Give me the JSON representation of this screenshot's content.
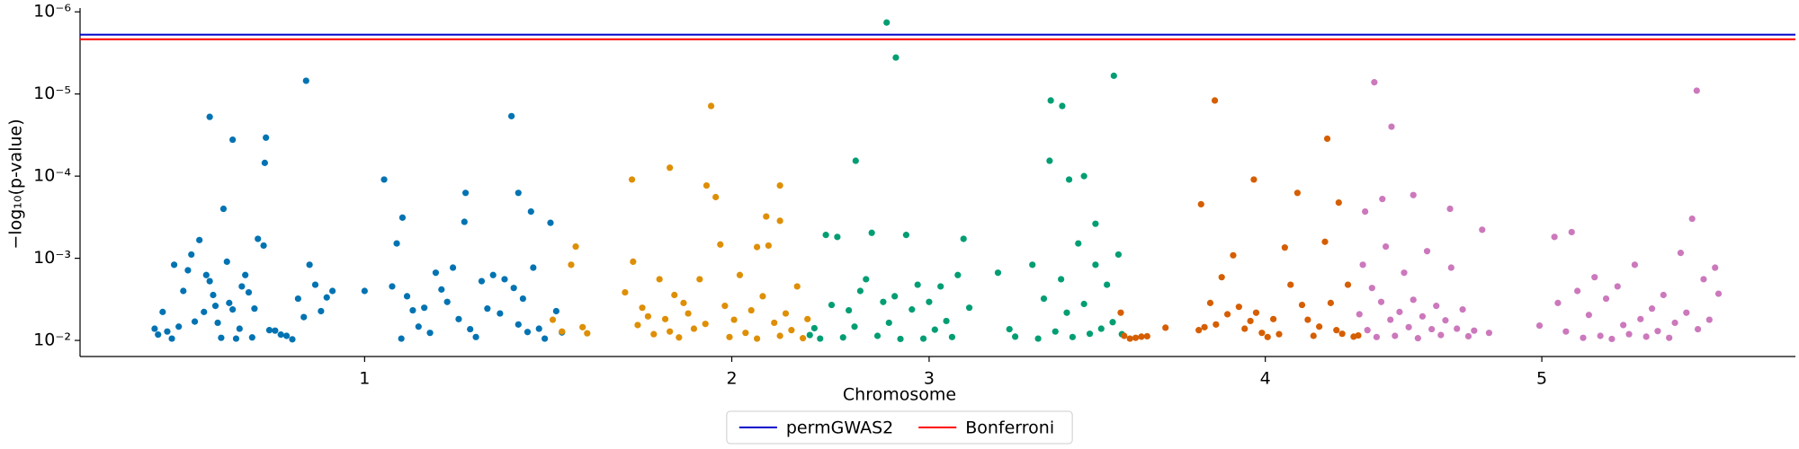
{
  "chart_data": {
    "type": "scatter",
    "x_label": "Chromosome",
    "y_label": "−log₁₀(p-value)",
    "log_y": true,
    "xlim": [
      0,
      1495
    ],
    "ylim": [
      0.0157,
      9e-07
    ],
    "xticks": [
      {
        "value": 248,
        "label": "1"
      },
      {
        "value": 568,
        "label": "2"
      },
      {
        "value": 740,
        "label": "3"
      },
      {
        "value": 1033,
        "label": "4"
      },
      {
        "value": 1274,
        "label": "5"
      }
    ],
    "yticks": [
      {
        "value": 0.01,
        "label": "10⁻²"
      },
      {
        "value": 0.001,
        "label": "10⁻³"
      },
      {
        "value": 0.0001,
        "label": "10⁻⁴"
      },
      {
        "value": 1e-05,
        "label": "10⁻⁵"
      },
      {
        "value": 1e-06,
        "label": "10⁻⁶"
      }
    ],
    "legend": "lower center outside",
    "series": [
      {
        "color": "#0173b2",
        "x": [
          65,
          68,
          72,
          76,
          80,
          82,
          86,
          90,
          94,
          97,
          100,
          104,
          108,
          110,
          113,
          116,
          118,
          120,
          123,
          125,
          128,
          130,
          133,
          136,
          139,
          141,
          144,
          147,
          150,
          152,
          113,
          133,
          162,
          161,
          155,
          160,
          165,
          170,
          175,
          180,
          185,
          190,
          195,
          200,
          205,
          210,
          197,
          215,
          220,
          248,
          265,
          272,
          276,
          280,
          285,
          290,
          295,
          300,
          305,
          310,
          315,
          320,
          325,
          330,
          335,
          340,
          345,
          350,
          355,
          360,
          366,
          370,
          376,
          378,
          382,
          386,
          390,
          395,
          400,
          405,
          410,
          415,
          420,
          336,
          382,
          281,
          393
        ],
        "values": [
          0.0072,
          0.0085,
          0.0045,
          0.0078,
          0.0095,
          0.0012,
          0.0068,
          0.0025,
          0.0014,
          0.0009,
          0.0059,
          0.0006,
          0.0045,
          0.0016,
          0.0019,
          0.0028,
          0.0038,
          0.0061,
          0.0093,
          0.00025,
          0.0011,
          0.0035,
          0.0042,
          0.0095,
          0.0072,
          0.0022,
          0.0016,
          0.0026,
          0.0092,
          0.0041,
          1.9e-05,
          3.6e-05,
          3.4e-05,
          6.9e-05,
          0.00058,
          0.0007,
          0.0075,
          0.0076,
          0.0085,
          0.0088,
          0.0097,
          0.0031,
          0.0052,
          0.0012,
          0.0021,
          0.0044,
          6.9e-06,
          0.003,
          0.0025,
          0.0025,
          0.00011,
          0.0022,
          0.00066,
          0.0095,
          0.0029,
          0.0043,
          0.0068,
          0.004,
          0.0081,
          0.0015,
          0.0024,
          0.0034,
          0.0013,
          0.0055,
          0.00036,
          0.0073,
          0.0091,
          0.0019,
          0.0041,
          0.0016,
          0.0047,
          0.0018,
          1.86e-05,
          0.0023,
          0.0064,
          0.0031,
          0.0079,
          0.0013,
          0.0072,
          0.0095,
          0.00037,
          0.0044,
          0.008,
          0.00016,
          0.00016,
          0.00032,
          0.00027
        ]
      },
      {
        "color": "#de8f05",
        "x": [
          412,
          420,
          428,
          432,
          438,
          442,
          475,
          482,
          486,
          490,
          495,
          500,
          505,
          510,
          514,
          518,
          522,
          526,
          530,
          535,
          540,
          545,
          550,
          481,
          514,
          546,
          610,
          554,
          558,
          562,
          566,
          570,
          575,
          580,
          585,
          590,
          595,
          600,
          605,
          610,
          615,
          620,
          625,
          630,
          634,
          590,
          610,
          598
        ],
        "values": [
          0.0056,
          0.0078,
          0.0012,
          0.00072,
          0.0069,
          0.0082,
          0.0026,
          0.0011,
          0.0065,
          0.004,
          0.0051,
          0.0084,
          0.0018,
          0.0055,
          0.0078,
          0.0028,
          0.0092,
          0.0035,
          0.0047,
          0.0072,
          0.0018,
          0.0063,
          1.4e-05,
          0.00011,
          7.9e-05,
          0.00013,
          0.00013,
          0.00018,
          0.00068,
          0.0038,
          0.0091,
          0.0056,
          0.0016,
          0.0081,
          0.0043,
          0.0095,
          0.0029,
          0.0007,
          0.0061,
          0.0088,
          0.0047,
          0.0075,
          0.0022,
          0.0094,
          0.0055,
          0.00073,
          0.00035,
          0.00031
        ]
      },
      {
        "color": "#029e73",
        "x": [
          703,
          711,
          676,
          846,
          856,
          901,
          845,
          862,
          875,
          885,
          770,
          636,
          640,
          645,
          650,
          655,
          660,
          665,
          670,
          675,
          680,
          685,
          690,
          695,
          700,
          705,
          710,
          715,
          720,
          725,
          730,
          735,
          740,
          745,
          750,
          755,
          760,
          765,
          775,
          800,
          810,
          815,
          830,
          835,
          840,
          850,
          855,
          860,
          865,
          870,
          875,
          880,
          885,
          890,
          895,
          900,
          905,
          908
        ],
        "values": [
          1.35e-06,
          3.6e-06,
          6.5e-05,
          1.2e-05,
          1.4e-05,
          6e-06,
          6.5e-05,
          0.00011,
          0.0001,
          0.00038,
          0.00058,
          0.0086,
          0.0071,
          0.0095,
          0.00052,
          0.0037,
          0.00055,
          0.0092,
          0.0043,
          0.0068,
          0.0025,
          0.0018,
          0.00049,
          0.0088,
          0.0034,
          0.0061,
          0.0029,
          0.0096,
          0.00052,
          0.0042,
          0.0021,
          0.0095,
          0.0034,
          0.0074,
          0.0022,
          0.0058,
          0.0091,
          0.0016,
          0.004,
          0.0015,
          0.0073,
          0.009,
          0.0012,
          0.0095,
          0.0031,
          0.0078,
          0.0018,
          0.0046,
          0.0091,
          0.00066,
          0.0036,
          0.0083,
          0.0012,
          0.0072,
          0.0021,
          0.006,
          0.0009,
          0.0084
        ]
      },
      {
        "color": "#d55e00",
        "x": [
          907,
          910,
          915,
          920,
          925,
          930,
          946,
          975,
          980,
          985,
          989,
          977,
          990,
          995,
          1000,
          1005,
          1010,
          1015,
          1020,
          1023,
          1025,
          1030,
          1035,
          1040,
          1045,
          1050,
          1055,
          1061,
          1065,
          1070,
          1075,
          1080,
          1085,
          1087,
          1090,
          1095,
          1097,
          1100,
          1105,
          1110,
          1114
        ],
        "values": [
          0.0046,
          0.0088,
          0.0095,
          0.0093,
          0.009,
          0.0089,
          0.007,
          0.0075,
          0.0069,
          0.0035,
          1.2e-05,
          0.00022,
          0.0064,
          0.0017,
          0.0048,
          0.00092,
          0.0039,
          0.0072,
          0.0058,
          0.00011,
          0.0046,
          0.0081,
          0.0091,
          0.0055,
          0.0084,
          0.00074,
          0.0021,
          0.00016,
          0.0037,
          0.0056,
          0.0088,
          0.0068,
          0.00063,
          3.5e-05,
          0.0035,
          0.0075,
          0.00021,
          0.0083,
          0.0021,
          0.009,
          0.0087
        ]
      },
      {
        "color": "#cc78bc",
        "x": [
          1128,
          1143,
          1409,
          1135,
          1162,
          1194,
          1405,
          1120,
          1115,
          1118,
          1122,
          1126,
          1130,
          1134,
          1138,
          1142,
          1146,
          1150,
          1154,
          1158,
          1162,
          1166,
          1170,
          1174,
          1178,
          1182,
          1186,
          1190,
          1195,
          1200,
          1205,
          1210,
          1215,
          1222,
          1228,
          1272,
          1285,
          1288,
          1295,
          1300,
          1305,
          1310,
          1315,
          1320,
          1325,
          1330,
          1335,
          1340,
          1345,
          1350,
          1355,
          1360,
          1365,
          1370,
          1375,
          1380,
          1385,
          1390,
          1395,
          1400,
          1410,
          1415,
          1420,
          1425,
          1428
        ],
        "values": [
          7.2e-06,
          2.5e-05,
          9.1e-06,
          0.00019,
          0.00017,
          0.00025,
          0.00033,
          0.00027,
          0.0048,
          0.0012,
          0.0075,
          0.0023,
          0.0091,
          0.0034,
          0.00072,
          0.0056,
          0.0088,
          0.0045,
          0.0015,
          0.0069,
          0.0032,
          0.0094,
          0.0051,
          0.00082,
          0.0073,
          0.0038,
          0.0086,
          0.0057,
          0.0013,
          0.0072,
          0.0042,
          0.0089,
          0.0076,
          0.00045,
          0.0081,
          0.0066,
          0.00055,
          0.0035,
          0.0078,
          0.00048,
          0.0025,
          0.0093,
          0.0049,
          0.0017,
          0.0088,
          0.0031,
          0.0096,
          0.0022,
          0.0065,
          0.0084,
          0.0012,
          0.0055,
          0.009,
          0.0041,
          0.0077,
          0.0028,
          0.0093,
          0.0061,
          0.00086,
          0.0046,
          0.0073,
          0.0018,
          0.0056,
          0.0013,
          0.0027
        ]
      }
    ],
    "hlines": [
      {
        "name": "permGWAS2",
        "color": "#0000cc",
        "value": 1.9e-06
      },
      {
        "name": "Bonferroni",
        "color": "#ff0000",
        "value": 2.16e-06
      }
    ]
  }
}
